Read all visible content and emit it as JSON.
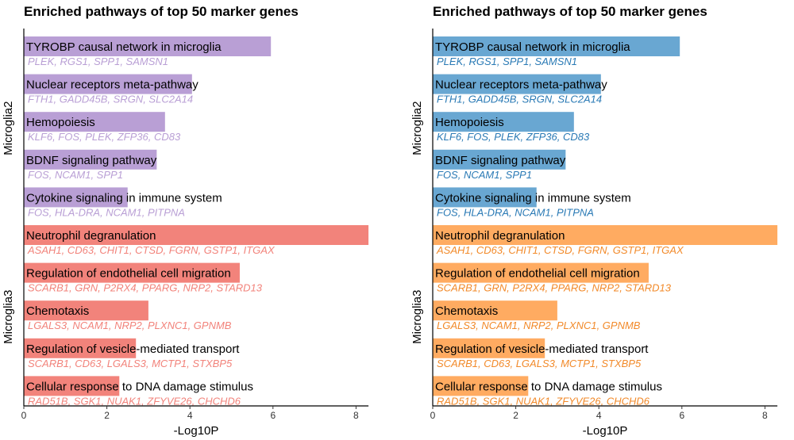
{
  "chart_data": [
    {
      "type": "bar",
      "orientation": "horizontal",
      "title": "Enriched pathways of top 50 marker genes",
      "xlabel": "-Log10P",
      "xlim": [
        0,
        8.3
      ],
      "xticks": [
        "0",
        "2",
        "4",
        "6",
        "8"
      ],
      "colors": {
        "Microglia2": "#b99fd5",
        "Microglia3": "#f2837b"
      },
      "groups": [
        {
          "name": "Microglia2",
          "pathways": [
            {
              "term": "TYROBP causal network in microglia",
              "value": 5.95,
              "genes": "PLEK, RGS1, SPP1, SAMSN1"
            },
            {
              "term": "Nuclear receptors meta-pathway",
              "value": 4.05,
              "genes": "FTH1, GADD45B, SRGN, SLC2A14"
            },
            {
              "term": "Hemopoiesis",
              "value": 3.4,
              "genes": "KLF6, FOS, PLEK, ZFP36, CD83"
            },
            {
              "term": "BDNF signaling pathway",
              "value": 3.2,
              "genes": "FOS, NCAM1, SPP1"
            },
            {
              "term": "Cytokine signaling in immune system",
              "value": 2.5,
              "genes": "FOS, HLA-DRA, NCAM1, PITPNA"
            }
          ]
        },
        {
          "name": "Microglia3",
          "pathways": [
            {
              "term": "Neutrophil degranulation",
              "value": 8.3,
              "genes": "ASAH1, CD63, CHIT1, CTSD, FGRN, GSTP1, ITGAX"
            },
            {
              "term": "Regulation of endothelial cell migration",
              "value": 5.2,
              "genes": "SCARB1, GRN, P2RX4, PPARG, NRP2, STARD13"
            },
            {
              "term": "Chemotaxis",
              "value": 3.0,
              "genes": "LGALS3, NCAM1, NRP2, PLXNC1, GPNMB"
            },
            {
              "term": "Regulation of vesicle-mediated transport",
              "value": 2.7,
              "genes": "SCARB1, CD63, LGALS3, MCTP1, STXBP5"
            },
            {
              "term": "Cellular response to DNA damage stimulus",
              "value": 2.3,
              "genes": "RAD51B, SGK1, NUAK1, ZFYVE26, CHCHD6"
            }
          ]
        }
      ]
    },
    {
      "type": "bar",
      "orientation": "horizontal",
      "title": "Enriched pathways of top 50 marker genes",
      "xlabel": "-Log10P",
      "xlim": [
        0,
        8.3
      ],
      "xticks": [
        "0",
        "2",
        "4",
        "6",
        "8"
      ],
      "colors": {
        "Microglia2": "#69a7d2",
        "Microglia3": "#ffab61"
      },
      "gene_colors": {
        "Microglia2": "#2a7ab5",
        "Microglia3": "#f28a2a"
      },
      "groups": [
        {
          "name": "Microglia2",
          "pathways": [
            {
              "term": "TYROBP causal network in microglia",
              "value": 5.95,
              "genes": "PLEK, RGS1, SPP1, SAMSN1"
            },
            {
              "term": "Nuclear receptors meta-pathway",
              "value": 4.05,
              "genes": "FTH1, GADD45B, SRGN, SLC2A14"
            },
            {
              "term": "Hemopoiesis",
              "value": 3.4,
              "genes": "KLF6, FOS, PLEK, ZFP36, CD83"
            },
            {
              "term": "BDNF signaling pathway",
              "value": 3.2,
              "genes": "FOS, NCAM1, SPP1"
            },
            {
              "term": "Cytokine signaling in immune system",
              "value": 2.5,
              "genes": "FOS, HLA-DRA, NCAM1, PITPNA"
            }
          ]
        },
        {
          "name": "Microglia3",
          "pathways": [
            {
              "term": "Neutrophil degranulation",
              "value": 8.3,
              "genes": "ASAH1, CD63, CHIT1, CTSD, FGRN, GSTP1, ITGAX"
            },
            {
              "term": "Regulation of endothelial cell migration",
              "value": 5.2,
              "genes": "SCARB1, GRN, P2RX4, PPARG, NRP2, STARD13"
            },
            {
              "term": "Chemotaxis",
              "value": 3.0,
              "genes": "LGALS3, NCAM1, NRP2, PLXNC1, GPNMB"
            },
            {
              "term": "Regulation of vesicle-mediated transport",
              "value": 2.7,
              "genes": "SCARB1, CD63, LGALS3, MCTP1, STXBP5"
            },
            {
              "term": "Cellular response to DNA damage stimulus",
              "value": 2.3,
              "genes": "RAD51B, SGK1, NUAK1, ZFYVE26, CHCHD6"
            }
          ]
        }
      ]
    }
  ]
}
